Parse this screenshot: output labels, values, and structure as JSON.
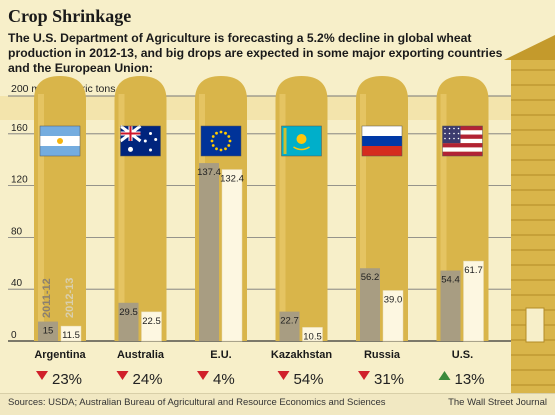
{
  "title": "Crop Shrinkage",
  "subtitle": "The U.S. Department of Agriculture is forecasting a 5.2% decline in global wheat production in 2012-13, and big drops are expected in some major exporting countries and the European Union:",
  "sources": "Sources: USDA; Australian Bureau of Agricultural and Resource Economics and Sciences",
  "credit": "The Wall Street Journal",
  "colors": {
    "bar_2011": "#a89d82",
    "bar_2012": "#fdf7e1",
    "silo": "#d9b54a",
    "down": "#d0202a",
    "up": "#3a8a3a",
    "grid": "#777"
  },
  "chart_data": {
    "type": "bar",
    "ylabel": "200 million metric tons",
    "ylim": [
      0,
      200
    ],
    "yticks": [
      0,
      40,
      80,
      120,
      160
    ],
    "categories": [
      "Argentina",
      "Australia",
      "E.U.",
      "Kazakhstan",
      "Russia",
      "U.S."
    ],
    "flags": [
      "argentina-flag-icon",
      "australia-flag-icon",
      "eu-flag-icon",
      "kazakhstan-flag-icon",
      "russia-flag-icon",
      "us-flag-icon"
    ],
    "series": [
      {
        "name": "2011-12",
        "values": [
          15,
          29.5,
          137.4,
          22.7,
          56.2,
          54.4
        ]
      },
      {
        "name": "2012-13",
        "values": [
          11.5,
          22.5,
          132.4,
          10.5,
          39.0,
          61.7
        ]
      }
    ],
    "value_labels": [
      [
        "15",
        "11.5"
      ],
      [
        "29.5",
        "22.5"
      ],
      [
        "137.4",
        "132.4"
      ],
      [
        "22.7",
        "10.5"
      ],
      [
        "56.2",
        "39.0"
      ],
      [
        "54.4",
        "61.7"
      ]
    ],
    "changes": [
      {
        "direction": "down",
        "text": "23%"
      },
      {
        "direction": "down",
        "text": "24%"
      },
      {
        "direction": "down",
        "text": "4%"
      },
      {
        "direction": "down",
        "text": "54%"
      },
      {
        "direction": "down",
        "text": "31%"
      },
      {
        "direction": "up",
        "text": "13%"
      }
    ]
  }
}
